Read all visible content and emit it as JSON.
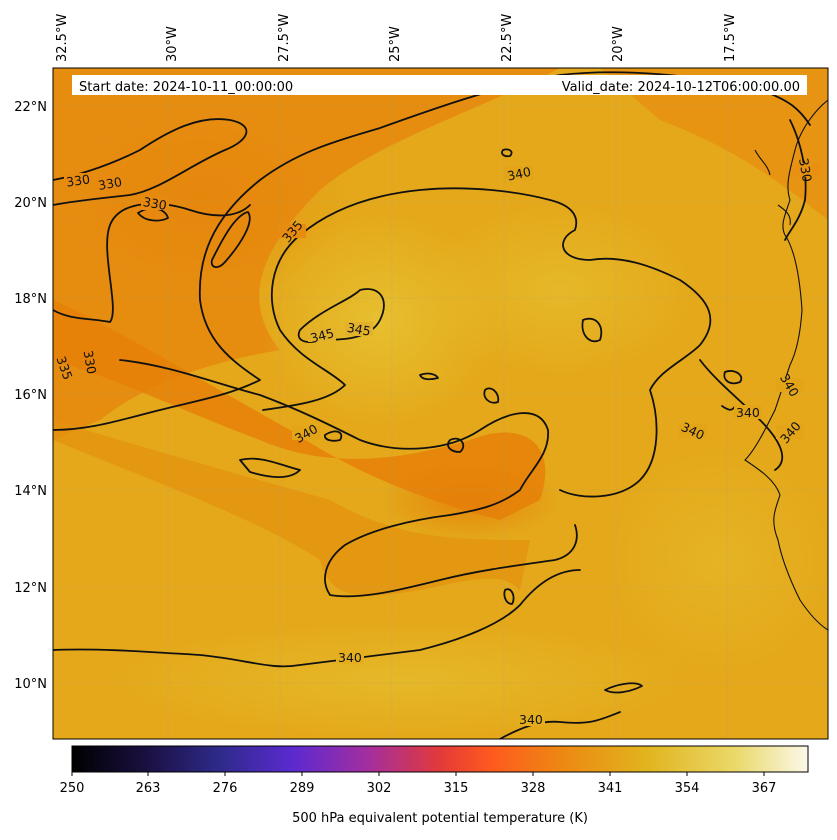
{
  "header": {
    "start_date": "Start date: 2024-10-11_00:00:00",
    "valid_date": "Valid_date: 2024-10-12T06:00:00.00"
  },
  "axes": {
    "lon_labels": [
      "32.5°W",
      "30°W",
      "27.5°W",
      "25°W",
      "22.5°W",
      "20°W",
      "17.5°W"
    ],
    "lat_labels": [
      "22°N",
      "20°N",
      "18°N",
      "16°N",
      "14°N",
      "12°N",
      "10°N"
    ]
  },
  "contours": {
    "labels": [
      "330",
      "330",
      "330",
      "335",
      "330",
      "335",
      "345",
      "345",
      "340",
      "340",
      "340",
      "340",
      "340",
      "340",
      "340",
      "340",
      "330"
    ]
  },
  "colorbar": {
    "ticks": [
      "250",
      "263",
      "276",
      "289",
      "302",
      "315",
      "328",
      "341",
      "354",
      "367"
    ],
    "label": "500 hPa equivalent potential temperature (K)",
    "stops": [
      "#000000",
      "#1a1040",
      "#2e2a8a",
      "#5b2ad0",
      "#a22ea0",
      "#e23a3a",
      "#ff5a1e",
      "#ec8a12",
      "#e1b41e",
      "#ead868",
      "#fbf8e8"
    ]
  },
  "colors": {
    "field_warm": "#e8860c",
    "field_mid": "#e4a418",
    "field_light": "#e6bc2a"
  }
}
